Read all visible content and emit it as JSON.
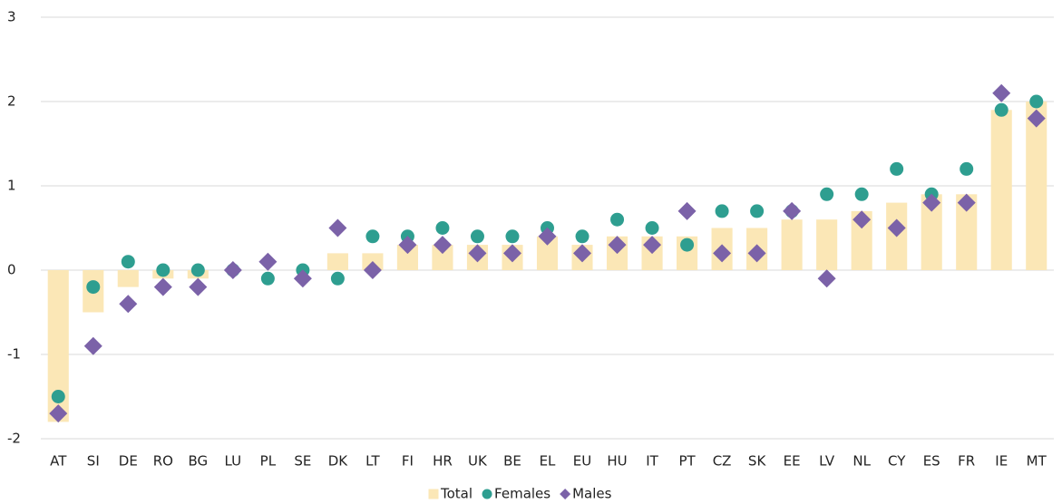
{
  "chart_data": {
    "type": "combo",
    "categories": [
      "AT",
      "SI",
      "DE",
      "RO",
      "BG",
      "LU",
      "PL",
      "SE",
      "DK",
      "LT",
      "FI",
      "HR",
      "UK",
      "BE",
      "EL",
      "EU",
      "HU",
      "IT",
      "PT",
      "CZ",
      "SK",
      "EE",
      "LV",
      "NL",
      "CY",
      "ES",
      "FR",
      "IE",
      "MT"
    ],
    "series": [
      {
        "name": "Total",
        "type": "bar",
        "marker": "square",
        "color": "#fbe7b6",
        "values": [
          -1.8,
          -0.5,
          -0.2,
          -0.1,
          -0.1,
          0.0,
          0.0,
          0.0,
          0.2,
          0.2,
          0.3,
          0.3,
          0.3,
          0.3,
          0.4,
          0.3,
          0.4,
          0.4,
          0.4,
          0.5,
          0.5,
          0.6,
          0.6,
          0.7,
          0.8,
          0.9,
          0.9,
          1.9,
          2.0
        ]
      },
      {
        "name": "Females",
        "type": "scatter",
        "marker": "circle",
        "color": "#2e9e90",
        "values": [
          -1.5,
          -0.2,
          0.1,
          0.0,
          0.0,
          0.0,
          -0.1,
          0.0,
          -0.1,
          0.4,
          0.4,
          0.5,
          0.4,
          0.4,
          0.5,
          0.4,
          0.6,
          0.5,
          0.3,
          0.7,
          0.7,
          0.7,
          0.9,
          0.9,
          1.2,
          0.9,
          1.2,
          1.9,
          2.0
        ]
      },
      {
        "name": "Males",
        "type": "scatter",
        "marker": "diamond",
        "color": "#7b62a8",
        "values": [
          -1.7,
          -0.9,
          -0.4,
          -0.2,
          -0.2,
          0.0,
          0.1,
          -0.1,
          0.5,
          0.0,
          0.3,
          0.3,
          0.2,
          0.2,
          0.4,
          0.2,
          0.3,
          0.3,
          0.7,
          0.2,
          0.2,
          0.7,
          -0.1,
          0.6,
          0.5,
          0.8,
          0.8,
          2.1,
          1.8
        ]
      }
    ],
    "ylim": [
      -2,
      3
    ],
    "yticks": [
      -2,
      -1,
      0,
      1,
      2,
      3
    ],
    "grid": true,
    "legend": "bottom"
  }
}
